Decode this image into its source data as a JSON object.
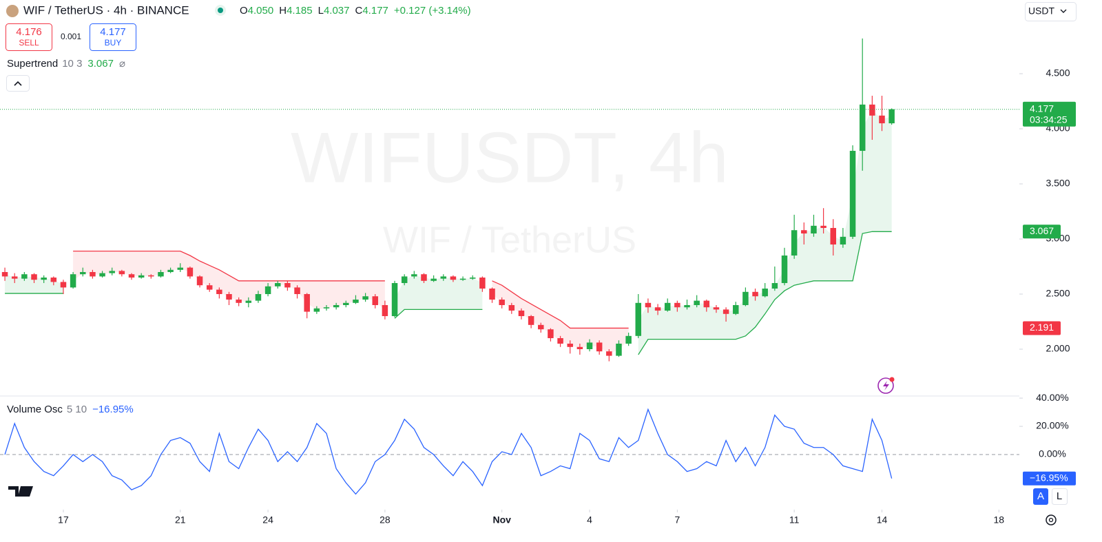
{
  "chart_data": {
    "type": "candlestick",
    "title": "WIF / TetherUS · 4h · BINANCE",
    "watermark": "WIFUSDT, 4h",
    "watermark_sub": "WIF / TetherUS",
    "legend_ohlc": [
      {
        "key": "O",
        "value": "4.050"
      },
      {
        "key": "H",
        "value": "4.185"
      },
      {
        "key": "L",
        "value": "4.037"
      },
      {
        "key": "C",
        "value": "4.177"
      }
    ],
    "legend_change": "+0.127 (+3.14%)",
    "sell": {
      "price": "4.176",
      "label": "SELL"
    },
    "spread": "0.001",
    "buy": {
      "price": "4.177",
      "label": "BUY"
    },
    "currency": "USDT",
    "countdown": "03:34:25",
    "scale_buttons": [
      "A",
      "L"
    ],
    "up_color": "#22ab4a",
    "down_color": "#f23645",
    "grid": false,
    "ohlc": [
      [
        2.7,
        2.74,
        2.62,
        2.66
      ],
      [
        2.66,
        2.69,
        2.6,
        2.64
      ],
      [
        2.64,
        2.7,
        2.62,
        2.68
      ],
      [
        2.68,
        2.69,
        2.6,
        2.63
      ],
      [
        2.63,
        2.67,
        2.6,
        2.65
      ],
      [
        2.65,
        2.66,
        2.58,
        2.61
      ],
      [
        2.61,
        2.63,
        2.5,
        2.56
      ],
      [
        2.56,
        2.7,
        2.55,
        2.68
      ],
      [
        2.68,
        2.74,
        2.66,
        2.7
      ],
      [
        2.7,
        2.72,
        2.64,
        2.66
      ],
      [
        2.66,
        2.71,
        2.65,
        2.69
      ],
      [
        2.69,
        2.74,
        2.67,
        2.71
      ],
      [
        2.71,
        2.72,
        2.66,
        2.68
      ],
      [
        2.68,
        2.69,
        2.63,
        2.65
      ],
      [
        2.65,
        2.69,
        2.64,
        2.67
      ],
      [
        2.67,
        2.68,
        2.64,
        2.66
      ],
      [
        2.66,
        2.72,
        2.65,
        2.7
      ],
      [
        2.7,
        2.74,
        2.69,
        2.72
      ],
      [
        2.72,
        2.78,
        2.7,
        2.74
      ],
      [
        2.74,
        2.75,
        2.64,
        2.66
      ],
      [
        2.66,
        2.67,
        2.56,
        2.58
      ],
      [
        2.58,
        2.6,
        2.52,
        2.54
      ],
      [
        2.54,
        2.56,
        2.46,
        2.5
      ],
      [
        2.5,
        2.52,
        2.4,
        2.45
      ],
      [
        2.45,
        2.47,
        2.39,
        2.42
      ],
      [
        2.42,
        2.47,
        2.38,
        2.44
      ],
      [
        2.44,
        2.53,
        2.42,
        2.5
      ],
      [
        2.5,
        2.6,
        2.48,
        2.57
      ],
      [
        2.57,
        2.62,
        2.55,
        2.6
      ],
      [
        2.6,
        2.62,
        2.53,
        2.56
      ],
      [
        2.56,
        2.58,
        2.46,
        2.5
      ],
      [
        2.5,
        2.51,
        2.28,
        2.34
      ],
      [
        2.34,
        2.39,
        2.32,
        2.37
      ],
      [
        2.37,
        2.4,
        2.35,
        2.38
      ],
      [
        2.38,
        2.42,
        2.36,
        2.4
      ],
      [
        2.4,
        2.44,
        2.38,
        2.42
      ],
      [
        2.42,
        2.49,
        2.41,
        2.45
      ],
      [
        2.45,
        2.51,
        2.43,
        2.48
      ],
      [
        2.48,
        2.5,
        2.37,
        2.4
      ],
      [
        2.4,
        2.44,
        2.27,
        2.3
      ],
      [
        2.3,
        2.62,
        2.29,
        2.6
      ],
      [
        2.6,
        2.68,
        2.58,
        2.66
      ],
      [
        2.66,
        2.71,
        2.64,
        2.68
      ],
      [
        2.68,
        2.69,
        2.6,
        2.62
      ],
      [
        2.62,
        2.67,
        2.61,
        2.64
      ],
      [
        2.64,
        2.68,
        2.62,
        2.66
      ],
      [
        2.66,
        2.67,
        2.61,
        2.63
      ],
      [
        2.63,
        2.66,
        2.62,
        2.64
      ],
      [
        2.64,
        2.67,
        2.63,
        2.65
      ],
      [
        2.65,
        2.66,
        2.52,
        2.55
      ],
      [
        2.55,
        2.56,
        2.42,
        2.45
      ],
      [
        2.45,
        2.47,
        2.37,
        2.4
      ],
      [
        2.4,
        2.42,
        2.32,
        2.35
      ],
      [
        2.35,
        2.37,
        2.27,
        2.3
      ],
      [
        2.3,
        2.31,
        2.19,
        2.22
      ],
      [
        2.22,
        2.24,
        2.15,
        2.18
      ],
      [
        2.18,
        2.19,
        2.07,
        2.1
      ],
      [
        2.1,
        2.12,
        2.02,
        2.05
      ],
      [
        2.05,
        2.08,
        1.96,
        2.02
      ],
      [
        2.02,
        2.05,
        1.95,
        2.0
      ],
      [
        2.0,
        2.09,
        1.98,
        2.06
      ],
      [
        2.06,
        2.08,
        1.95,
        1.98
      ],
      [
        1.98,
        2.0,
        1.89,
        1.94
      ],
      [
        1.94,
        2.08,
        1.93,
        2.05
      ],
      [
        2.05,
        2.15,
        2.03,
        2.12
      ],
      [
        2.12,
        2.5,
        2.1,
        2.42
      ],
      [
        2.42,
        2.46,
        2.33,
        2.38
      ],
      [
        2.38,
        2.41,
        2.31,
        2.35
      ],
      [
        2.35,
        2.46,
        2.34,
        2.42
      ],
      [
        2.42,
        2.44,
        2.34,
        2.38
      ],
      [
        2.38,
        2.45,
        2.36,
        2.4
      ],
      [
        2.4,
        2.49,
        2.38,
        2.44
      ],
      [
        2.44,
        2.45,
        2.34,
        2.38
      ],
      [
        2.38,
        2.4,
        2.33,
        2.36
      ],
      [
        2.36,
        2.38,
        2.25,
        2.32
      ],
      [
        2.32,
        2.43,
        2.31,
        2.4
      ],
      [
        2.4,
        2.56,
        2.39,
        2.52
      ],
      [
        2.52,
        2.55,
        2.44,
        2.48
      ],
      [
        2.48,
        2.6,
        2.47,
        2.55
      ],
      [
        2.55,
        2.75,
        2.53,
        2.6
      ],
      [
        2.6,
        2.92,
        2.58,
        2.85
      ],
      [
        2.85,
        3.22,
        2.82,
        3.08
      ],
      [
        3.08,
        3.15,
        2.95,
        3.05
      ],
      [
        3.05,
        3.22,
        3.02,
        3.12
      ],
      [
        3.12,
        3.28,
        3.05,
        3.1
      ],
      [
        3.1,
        3.18,
        2.85,
        2.95
      ],
      [
        2.95,
        3.1,
        2.92,
        3.02
      ],
      [
        3.02,
        3.85,
        3.0,
        3.8
      ],
      [
        3.8,
        4.82,
        3.62,
        4.22
      ],
      [
        4.22,
        4.3,
        3.9,
        4.12
      ],
      [
        4.12,
        4.3,
        3.98,
        4.05
      ],
      [
        4.05,
        4.185,
        4.037,
        4.177
      ]
    ],
    "xlim": [
      -0.5,
      104.1
    ],
    "xticks": [
      {
        "value": 6,
        "label": "17"
      },
      {
        "value": 18,
        "label": "21"
      },
      {
        "value": 27,
        "label": "24"
      },
      {
        "value": 39,
        "label": "28"
      },
      {
        "value": 51,
        "label": "Nov"
      },
      {
        "value": 60,
        "label": "4"
      },
      {
        "value": 69,
        "label": "7"
      },
      {
        "value": 81,
        "label": "11"
      },
      {
        "value": 90,
        "label": "14"
      },
      {
        "value": 102,
        "label": "18"
      }
    ],
    "ylim": [
      1.575,
      5.169
    ],
    "yticks": [
      {
        "value": 2,
        "label": "2.000"
      },
      {
        "value": 2.5,
        "label": "2.500"
      },
      {
        "value": 3,
        "label": "3.000"
      },
      {
        "value": 3.5,
        "label": "3.500"
      },
      {
        "value": 4,
        "label": "4.000"
      },
      {
        "value": 4.5,
        "label": "4.500"
      }
    ],
    "supertrend": {
      "name": "Supertrend",
      "params": "10 3",
      "up_color": "#22ab4a",
      "down_color": "#f23645",
      "up": [
        2.506,
        2.506,
        2.506,
        2.506,
        2.506,
        2.506,
        2.506,
        null,
        null,
        null,
        null,
        null,
        null,
        null,
        null,
        null,
        null,
        null,
        null,
        null,
        null,
        null,
        null,
        null,
        null,
        null,
        null,
        null,
        null,
        null,
        null,
        null,
        null,
        null,
        null,
        null,
        null,
        null,
        null,
        null,
        2.28,
        2.36,
        2.36,
        2.36,
        2.36,
        2.36,
        2.36,
        2.36,
        2.36,
        2.36,
        null,
        null,
        null,
        null,
        null,
        null,
        null,
        null,
        null,
        null,
        null,
        null,
        null,
        null,
        null,
        1.95,
        2.09,
        2.09,
        2.09,
        2.09,
        2.09,
        2.09,
        2.09,
        2.09,
        2.09,
        2.09,
        2.12,
        2.2,
        2.32,
        2.45,
        2.53,
        2.58,
        2.6,
        2.62,
        2.62,
        2.62,
        2.62,
        2.62,
        3.05,
        3.067,
        3.067,
        3.067
      ],
      "down": [
        null,
        null,
        null,
        null,
        null,
        null,
        null,
        2.89,
        2.89,
        2.89,
        2.89,
        2.89,
        2.89,
        2.89,
        2.89,
        2.89,
        2.89,
        2.89,
        2.89,
        2.85,
        2.8,
        2.76,
        2.72,
        2.67,
        2.62,
        2.62,
        2.62,
        2.62,
        2.62,
        2.62,
        2.62,
        2.62,
        2.62,
        2.62,
        2.62,
        2.62,
        2.62,
        2.62,
        2.62,
        2.62,
        null,
        null,
        null,
        null,
        null,
        null,
        null,
        null,
        null,
        null,
        2.62,
        2.58,
        2.52,
        2.46,
        2.41,
        2.36,
        2.31,
        2.26,
        2.191,
        2.191,
        2.191,
        2.191,
        2.191,
        2.191,
        2.191,
        null,
        null,
        null,
        null,
        null,
        null,
        null,
        null,
        null,
        null,
        null,
        null,
        null,
        null,
        null,
        null,
        null,
        null,
        null,
        null,
        null,
        null,
        null,
        null,
        null,
        null,
        null
      ]
    },
    "volume_osc": {
      "name": "Volume Osc",
      "params": "5 10",
      "color": "#2962ff",
      "values": [
        0,
        22,
        5,
        -5,
        -12,
        -15,
        -8,
        0,
        -5,
        0,
        -5,
        -15,
        -18,
        -25,
        -22,
        -15,
        0,
        10,
        12,
        8,
        -5,
        -12,
        15,
        -5,
        -10,
        5,
        18,
        10,
        -5,
        2,
        -5,
        5,
        22,
        15,
        -10,
        -20,
        -28,
        -20,
        -5,
        0,
        10,
        25,
        18,
        5,
        0,
        -8,
        -15,
        -5,
        -12,
        -22,
        -5,
        2,
        0,
        15,
        5,
        -15,
        -12,
        -8,
        -10,
        15,
        10,
        -3,
        -5,
        12,
        5,
        10,
        32,
        15,
        0,
        -5,
        -12,
        -10,
        -5,
        -8,
        10,
        -5,
        5,
        -8,
        5,
        28,
        20,
        18,
        8,
        5,
        5,
        0,
        -8,
        -10,
        -12,
        25,
        10,
        -16.95
      ],
      "last_label": "−16.95%",
      "ylim": [
        -36.6,
        41.5
      ],
      "yticks": [
        {
          "value": 40,
          "label": "40.00%"
        },
        {
          "value": 20,
          "label": "20.00%"
        },
        {
          "value": 0,
          "label": "0.00%"
        }
      ]
    }
  }
}
